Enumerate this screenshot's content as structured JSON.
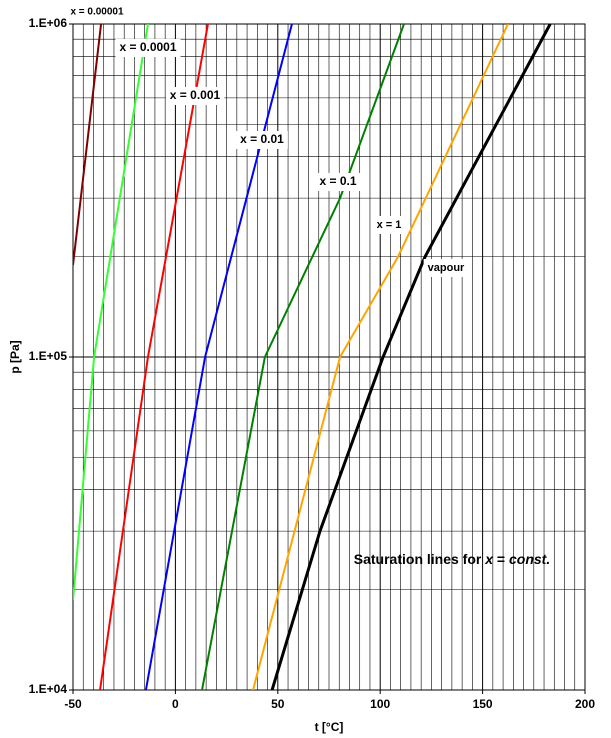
{
  "chart_data": {
    "type": "line",
    "x_label": "t [°C]",
    "y_label": "p [Pa]",
    "annotation": [
      "Saturation lines for ",
      "x",
      " = ",
      "const."
    ],
    "log_y": true,
    "grid": true,
    "xlim": [
      -50,
      200
    ],
    "xticks": [
      -50,
      0,
      50,
      100,
      150,
      200
    ],
    "xgrid": [
      -45,
      -40,
      -35,
      -30,
      -25,
      -20,
      -15,
      -10,
      -5,
      5,
      10,
      15,
      20,
      25,
      30,
      35,
      40,
      45,
      55,
      60,
      65,
      70,
      75,
      80,
      85,
      90,
      95,
      105,
      110,
      115,
      120,
      125,
      130,
      135,
      140,
      145,
      155,
      160,
      165,
      170,
      175,
      180,
      185,
      190,
      195
    ],
    "ylim": [
      10000,
      1000000
    ],
    "yticks": [
      {
        "value": 10000,
        "label": "1.E+04"
      },
      {
        "value": 100000,
        "label": "1.E+05"
      },
      {
        "value": 1000000,
        "label": "1.E+06"
      }
    ],
    "ygrid": [
      20000,
      30000,
      40000,
      50000,
      60000,
      70000,
      80000,
      90000,
      200000,
      300000,
      400000,
      500000,
      600000,
      700000,
      800000,
      900000
    ],
    "series": [
      {
        "name": "x = 0.00001",
        "color": "#800000",
        "x": [
          -50,
          -36.3
        ],
        "values": [
          189000,
          1000000
        ]
      },
      {
        "name": "x = 0.0001",
        "color": "#33ff33",
        "x": [
          -50,
          -39.7,
          -13.4
        ],
        "values": [
          18600,
          100000,
          1000000
        ]
      },
      {
        "name": "x = 0.001",
        "color": "#ff0000",
        "x": [
          -36.8,
          -13.4,
          15.9
        ],
        "values": [
          10000,
          100000,
          1000000
        ]
      },
      {
        "name": "x = 0.01",
        "color": "#0000ff",
        "x": [
          -14.4,
          14.5,
          56.9
        ],
        "values": [
          10000,
          100000,
          1000000
        ]
      },
      {
        "name": "x = 0.1",
        "color": "#008000",
        "x": [
          13,
          43.7,
          80.4,
          111.6
        ],
        "values": [
          10000,
          100000,
          300000,
          1000000
        ]
      },
      {
        "name": "x = 1",
        "color": "#ffa500",
        "x": [
          37.9,
          80.4,
          108.7,
          162.4
        ],
        "values": [
          10000,
          100000,
          200000,
          1000000
        ]
      },
      {
        "name": "vapour",
        "color": "#000000",
        "x": [
          47.2,
          70.6,
          101.4,
          121.9,
          183
        ],
        "values": [
          10000,
          30000,
          100000,
          200000,
          1000000
        ]
      }
    ]
  }
}
